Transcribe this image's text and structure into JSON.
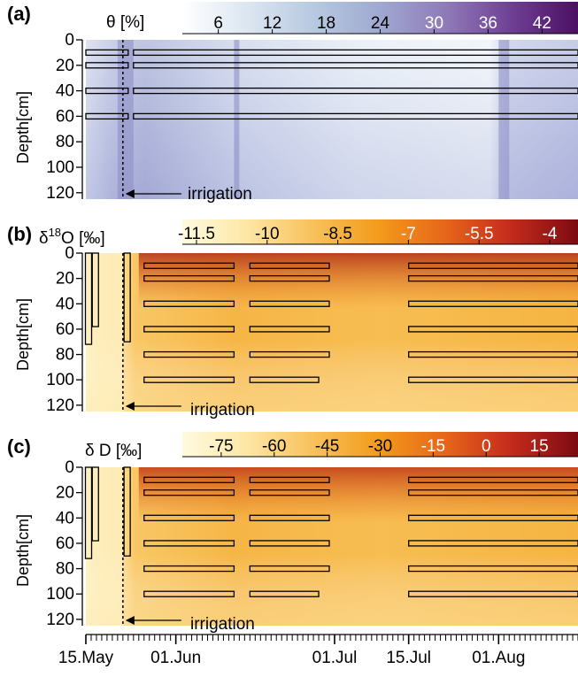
{
  "chart_data": [
    {
      "type": "heatmap",
      "panel": "(a)",
      "colorbar_label": "θ [%]",
      "colorbar_ticks": [
        "6",
        "12",
        "18",
        "24",
        "30",
        "36",
        "42"
      ],
      "colorbar_range": [
        2,
        46
      ],
      "colormap": [
        "#ffffff",
        "#dbe6f1",
        "#b7c9e0",
        "#9fa9d0",
        "#8f7ab8",
        "#6e3f94",
        "#4b0f63"
      ],
      "ylabel": "Depth[cm]",
      "yticks": [
        "0",
        "20",
        "40",
        "60",
        "80",
        "100",
        "120"
      ],
      "ylim": [
        0,
        125
      ],
      "annotation": "irrigation",
      "irrigation_day": 7,
      "sensor_depths_cm": [
        10,
        20,
        40,
        60
      ],
      "sensor_periods_day": [
        [
          0,
          8
        ],
        [
          9,
          93
        ]
      ],
      "wet_periods_day": [
        [
          6,
          9
        ],
        [
          28,
          29
        ],
        [
          78,
          80
        ]
      ]
    },
    {
      "type": "heatmap",
      "panel": "(b)",
      "colorbar_label": "δ18O [‰]",
      "colorbar_label_main": "δ",
      "colorbar_label_sup": "18",
      "colorbar_label_rest": "O [‰]",
      "colorbar_ticks": [
        "-11.5",
        "-10",
        "-8.5",
        "-7",
        "-5.5",
        "-4"
      ],
      "colorbar_range": [
        -11.8,
        -3.4
      ],
      "colormap": [
        "#fffbe0",
        "#fde6a4",
        "#f8c15a",
        "#f39a1a",
        "#e6651a",
        "#c32a1c",
        "#7d0a12"
      ],
      "ylabel": "Depth[cm]",
      "yticks": [
        "0",
        "20",
        "40",
        "60",
        "80",
        "100",
        "120"
      ],
      "ylim": [
        0,
        125
      ],
      "annotation": "irrigation",
      "irrigation_day": 7,
      "profile_bars": [
        {
          "day": 0.5,
          "top_cm": 0,
          "bottom_cm": 72
        },
        {
          "day": 1.8,
          "top_cm": 0,
          "bottom_cm": 58
        },
        {
          "day": 7.8,
          "top_cm": 0,
          "bottom_cm": 70
        }
      ],
      "sampling_bars": [
        {
          "depth_cm": 10,
          "periods_day": [
            [
              11,
              28
            ],
            [
              31,
              46
            ],
            [
              61,
              93
            ]
          ]
        },
        {
          "depth_cm": 20,
          "periods_day": [
            [
              11,
              28
            ],
            [
              31,
              46
            ],
            [
              61,
              93
            ]
          ]
        },
        {
          "depth_cm": 40,
          "periods_day": [
            [
              11,
              28
            ],
            [
              31,
              46
            ],
            [
              61,
              93
            ]
          ]
        },
        {
          "depth_cm": 60,
          "periods_day": [
            [
              11,
              28
            ],
            [
              31,
              46
            ],
            [
              61,
              93
            ]
          ]
        },
        {
          "depth_cm": 80,
          "periods_day": [
            [
              11,
              28
            ],
            [
              31,
              46
            ],
            [
              61,
              93
            ]
          ]
        },
        {
          "depth_cm": 100,
          "periods_day": [
            [
              11,
              28
            ],
            [
              31,
              44
            ],
            [
              61,
              93
            ]
          ]
        }
      ]
    },
    {
      "type": "heatmap",
      "panel": "(c)",
      "colorbar_label": "δ D [‰]",
      "colorbar_ticks": [
        "-75",
        "-60",
        "-45",
        "-30",
        "-15",
        "0",
        "15"
      ],
      "colorbar_range": [
        -86,
        26
      ],
      "colormap": [
        "#fffbe0",
        "#fde6a4",
        "#f8c15a",
        "#f39a1a",
        "#e6651a",
        "#c32a1c",
        "#7d0a12"
      ],
      "ylabel": "Depth[cm]",
      "yticks": [
        "0",
        "20",
        "40",
        "60",
        "80",
        "100",
        "120"
      ],
      "ylim": [
        0,
        125
      ],
      "annotation": "irrigation",
      "irrigation_day": 7,
      "x_axis": {
        "start": "15.May",
        "days_span": 93,
        "ticks": [
          {
            "label": "15.May",
            "day": 0
          },
          {
            "label": "01.Jun",
            "day": 17
          },
          {
            "label": "01.Jul",
            "day": 47
          },
          {
            "label": "15.Jul",
            "day": 61
          },
          {
            "label": "01.Aug",
            "day": 78
          }
        ]
      },
      "profile_bars": [
        {
          "day": 0.5,
          "top_cm": 0,
          "bottom_cm": 72
        },
        {
          "day": 1.8,
          "top_cm": 0,
          "bottom_cm": 58
        },
        {
          "day": 7.8,
          "top_cm": 0,
          "bottom_cm": 70
        }
      ],
      "sampling_bars": [
        {
          "depth_cm": 10,
          "periods_day": [
            [
              11,
              28
            ],
            [
              31,
              46
            ],
            [
              61,
              93
            ]
          ]
        },
        {
          "depth_cm": 20,
          "periods_day": [
            [
              11,
              28
            ],
            [
              31,
              46
            ],
            [
              61,
              93
            ]
          ]
        },
        {
          "depth_cm": 40,
          "periods_day": [
            [
              11,
              28
            ],
            [
              31,
              46
            ],
            [
              61,
              93
            ]
          ]
        },
        {
          "depth_cm": 60,
          "periods_day": [
            [
              11,
              28
            ],
            [
              31,
              46
            ],
            [
              61,
              93
            ]
          ]
        },
        {
          "depth_cm": 80,
          "periods_day": [
            [
              11,
              28
            ],
            [
              31,
              46
            ],
            [
              61,
              93
            ]
          ]
        },
        {
          "depth_cm": 100,
          "periods_day": [
            [
              11,
              28
            ],
            [
              31,
              44
            ],
            [
              61,
              93
            ]
          ]
        }
      ]
    }
  ]
}
